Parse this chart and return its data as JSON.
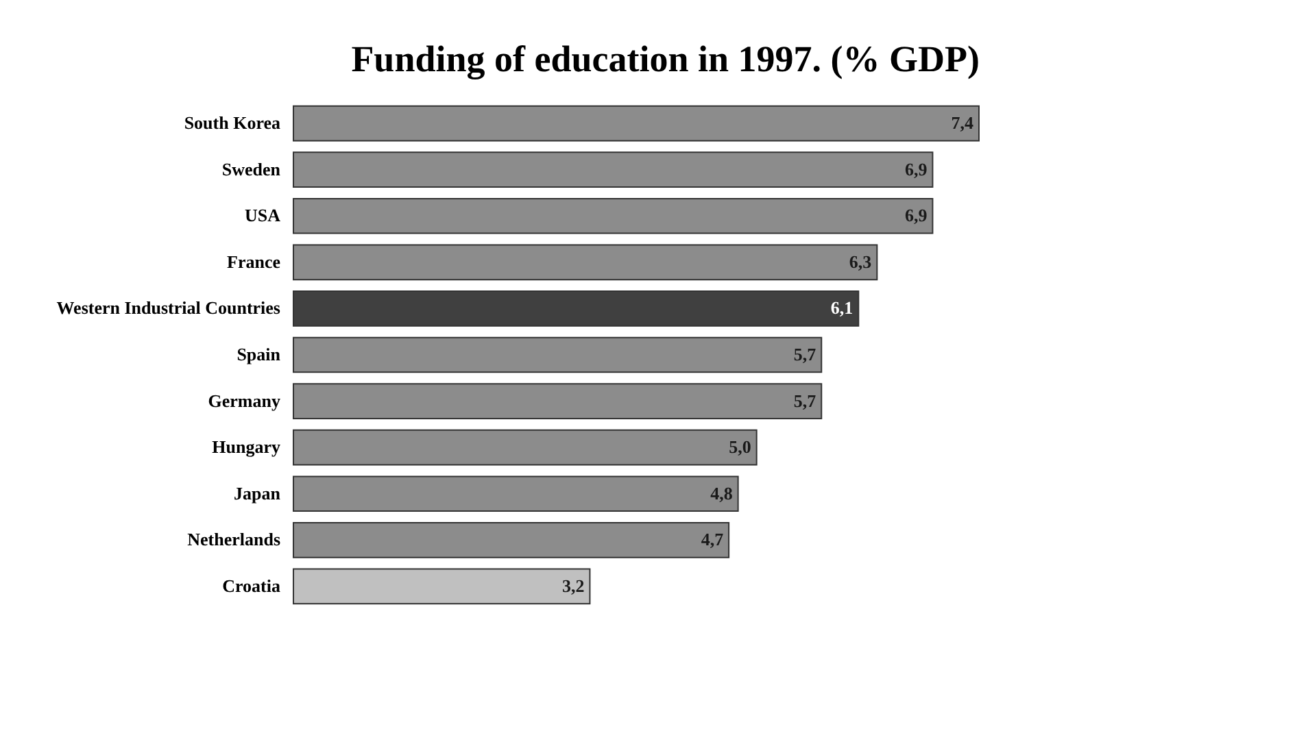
{
  "chart_data": {
    "type": "bar",
    "orientation": "horizontal",
    "title": "Funding of education in 1997. (% GDP)",
    "categories": [
      "South Korea",
      "Sweden",
      "USA",
      "France",
      "Western Industrial Countries",
      "Spain",
      "Germany",
      "Hungary",
      "Japan",
      "Netherlands",
      "Croatia"
    ],
    "values": [
      7.4,
      6.9,
      6.9,
      6.3,
      6.1,
      5.7,
      5.7,
      5.0,
      4.8,
      4.7,
      3.2
    ],
    "colors": [
      "#8c8c8c",
      "#8c8c8c",
      "#8c8c8c",
      "#8c8c8c",
      "#404040",
      "#8c8c8c",
      "#8c8c8c",
      "#8c8c8c",
      "#8c8c8c",
      "#8c8c8c",
      "#c0c0c0"
    ],
    "value_labels": [
      "7,4",
      "6,9",
      "6,9",
      "6,3",
      "6,1",
      "5,7",
      "5,7",
      "5,0",
      "4,8",
      "4,7",
      "3,2"
    ]
  }
}
